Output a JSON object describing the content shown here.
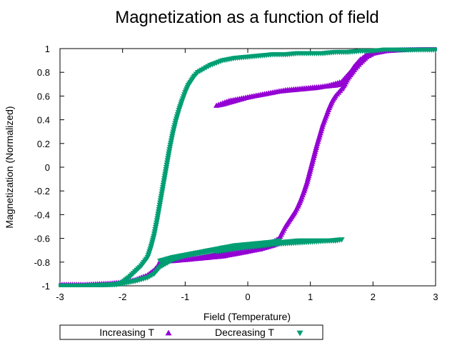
{
  "chart_data": {
    "type": "scatter",
    "title": "Magnetization as a function of field",
    "xlabel": "Field (Temperature)",
    "ylabel": "Magnetization (Normalized)",
    "xlim": [
      -3,
      3
    ],
    "ylim": [
      -1,
      1
    ],
    "xticks": [
      "-3",
      "-2",
      "-1",
      "0",
      "1",
      "2",
      "3"
    ],
    "yticks": [
      "1",
      "0.8",
      "0.6",
      "0.4",
      "0.2",
      "0",
      "-0.2",
      "-0.4",
      "-0.6",
      "-0.8",
      "-1"
    ],
    "grid": false,
    "legend_position": "bottom",
    "series": [
      {
        "name": "Increasing T",
        "color": "#9400d3",
        "marker": "triangle-up",
        "x": [
          -3.0,
          -2.6,
          -2.2,
          -2.0,
          -1.9,
          -1.8,
          -1.7,
          -1.6,
          -1.55,
          -1.5,
          -1.45,
          -1.4,
          -1.3,
          -1.2,
          -1.0,
          -0.8,
          -0.6,
          -0.4,
          -0.2,
          0.0,
          0.2,
          0.4,
          0.5,
          0.45,
          0.35,
          0.2,
          0.0,
          -0.2,
          -0.4,
          -0.6,
          -0.8,
          -1.0,
          -1.2,
          -1.4,
          -1.2,
          -1.0,
          -0.8,
          -0.6,
          -0.4,
          -0.2,
          0.0,
          0.2,
          0.4,
          0.5,
          0.55,
          0.6,
          0.65,
          0.7,
          0.75,
          0.8,
          0.85,
          0.9,
          0.95,
          1.0,
          1.05,
          1.1,
          1.15,
          1.2,
          1.25,
          1.3,
          1.35,
          1.4,
          1.45,
          1.5,
          1.55,
          1.6,
          1.7,
          1.8,
          1.9,
          2.0,
          1.9,
          1.8,
          1.7,
          1.6,
          1.5,
          1.3,
          1.1,
          0.9,
          0.7,
          0.5,
          0.3,
          0.1,
          -0.1,
          -0.3,
          -0.5,
          -0.4,
          -0.2,
          0.0,
          0.2,
          0.4,
          0.6,
          0.8,
          1.0,
          1.2,
          1.4,
          1.5,
          1.55,
          1.6,
          1.65,
          1.7,
          1.75,
          1.8,
          1.9,
          2.0,
          2.2,
          2.5,
          2.8,
          3.0
        ],
        "y": [
          -0.99,
          -0.99,
          -0.98,
          -0.97,
          -0.96,
          -0.95,
          -0.93,
          -0.91,
          -0.89,
          -0.87,
          -0.84,
          -0.8,
          -0.79,
          -0.79,
          -0.78,
          -0.77,
          -0.76,
          -0.75,
          -0.73,
          -0.71,
          -0.69,
          -0.66,
          -0.64,
          -0.63,
          -0.64,
          -0.66,
          -0.68,
          -0.7,
          -0.72,
          -0.74,
          -0.76,
          -0.77,
          -0.78,
          -0.79,
          -0.78,
          -0.78,
          -0.77,
          -0.76,
          -0.75,
          -0.73,
          -0.71,
          -0.68,
          -0.63,
          -0.6,
          -0.55,
          -0.5,
          -0.46,
          -0.42,
          -0.38,
          -0.33,
          -0.27,
          -0.2,
          -0.12,
          -0.02,
          0.08,
          0.18,
          0.27,
          0.36,
          0.43,
          0.5,
          0.56,
          0.6,
          0.63,
          0.66,
          0.7,
          0.75,
          0.82,
          0.88,
          0.93,
          0.96,
          0.95,
          0.9,
          0.84,
          0.78,
          0.72,
          0.69,
          0.67,
          0.66,
          0.65,
          0.64,
          0.62,
          0.6,
          0.58,
          0.56,
          0.52,
          0.53,
          0.56,
          0.59,
          0.61,
          0.63,
          0.65,
          0.66,
          0.67,
          0.68,
          0.69,
          0.7,
          0.73,
          0.77,
          0.81,
          0.85,
          0.88,
          0.91,
          0.94,
          0.96,
          0.98,
          0.99,
          1.0,
          1.0
        ]
      },
      {
        "name": "Decreasing T",
        "color": "#009e73",
        "marker": "triangle-down",
        "x": [
          3.0,
          2.8,
          2.5,
          2.2,
          2.0,
          1.8,
          1.6,
          1.4,
          1.2,
          1.0,
          0.8,
          0.6,
          0.4,
          0.2,
          0.0,
          -0.2,
          -0.4,
          -0.5,
          -0.6,
          -0.7,
          -0.8,
          -0.85,
          -0.9,
          -0.95,
          -1.0,
          -1.05,
          -1.1,
          -1.15,
          -1.2,
          -1.25,
          -1.3,
          -1.35,
          -1.4,
          -1.45,
          -1.5,
          -1.55,
          -1.6,
          -1.7,
          -1.8,
          -1.9,
          -2.0,
          -2.1,
          -2.3,
          -2.6,
          -3.0,
          -2.6,
          -2.2,
          -2.0,
          -1.8,
          -1.6,
          -1.5,
          -1.4,
          -1.2,
          -1.0,
          -0.8,
          -0.6,
          -0.4,
          -0.2,
          0.0,
          0.2,
          0.4,
          0.5,
          0.3,
          0.0,
          -0.3,
          -0.6,
          -0.9,
          -1.2,
          -1.4,
          -1.2,
          -1.0,
          -0.8,
          -0.5,
          -0.4,
          -0.2,
          0.0,
          0.2,
          0.4,
          0.6,
          0.8,
          1.0,
          1.2,
          1.4,
          1.5,
          1.3,
          1.0,
          0.7,
          0.4,
          0.1,
          -0.2,
          -0.5
        ],
        "y": [
          0.99,
          0.99,
          0.99,
          0.99,
          0.98,
          0.98,
          0.97,
          0.97,
          0.96,
          0.96,
          0.96,
          0.95,
          0.95,
          0.94,
          0.93,
          0.92,
          0.9,
          0.88,
          0.86,
          0.83,
          0.8,
          0.77,
          0.73,
          0.69,
          0.63,
          0.56,
          0.48,
          0.39,
          0.28,
          0.15,
          0.0,
          -0.15,
          -0.3,
          -0.45,
          -0.58,
          -0.68,
          -0.76,
          -0.83,
          -0.88,
          -0.93,
          -0.97,
          -0.99,
          -1.0,
          -1.0,
          -1.0,
          -1.0,
          -0.99,
          -0.98,
          -0.96,
          -0.93,
          -0.9,
          -0.84,
          -0.78,
          -0.75,
          -0.73,
          -0.7,
          -0.68,
          -0.66,
          -0.65,
          -0.64,
          -0.63,
          -0.62,
          -0.64,
          -0.66,
          -0.68,
          -0.7,
          -0.73,
          -0.76,
          -0.79,
          -0.77,
          -0.75,
          -0.73,
          -0.7,
          -0.68,
          -0.67,
          -0.66,
          -0.65,
          -0.64,
          -0.63,
          -0.62,
          -0.62,
          -0.62,
          -0.62,
          -0.61,
          -0.62,
          -0.63,
          -0.64,
          -0.65,
          -0.67,
          -0.69,
          -0.71
        ]
      }
    ]
  }
}
